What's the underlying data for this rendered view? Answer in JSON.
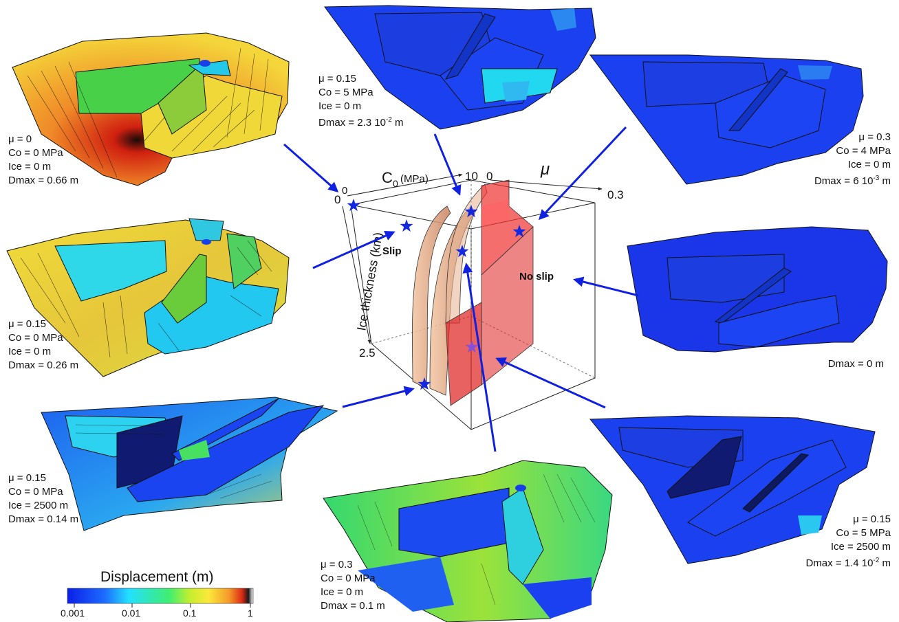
{
  "colorbar": {
    "title": "Displacement (m)",
    "ticks": [
      "0.001",
      "0.01",
      "0.1",
      "1"
    ],
    "colors": [
      "#0a1fe8",
      "#1e6bff",
      "#22e0ff",
      "#40ee70",
      "#c6ee2e",
      "#fbe83a",
      "#f59a2a",
      "#dd2a14",
      "#1a1a1a",
      "#ffffff"
    ]
  },
  "cube": {
    "c0_label": "C",
    "c0_sub": "0",
    "c0_unit": "(MPa)",
    "c0_min": "0",
    "c0_max": "10",
    "mu_label": "μ",
    "mu_min": "0",
    "mu_max": "0.3",
    "ice_label": "Ice thickness (km)",
    "ice_min": "0",
    "ice_max": "2.5",
    "slip_label": "Slip",
    "noslip_label": "No slip"
  },
  "panels": {
    "p1": {
      "mu": "μ = 0",
      "co": "Co = 0 MPa",
      "ice": "Ice = 0 m",
      "dmax": "Dmax = 0.66 m",
      "dominant_color": "#e8a020"
    },
    "p2": {
      "mu": "μ = 0.15",
      "co": "Co = 5 MPa",
      "ice": "Ice = 0 m",
      "dmax_base": "Dmax = 2.3 10",
      "dmax_exp": "-2",
      "dmax_unit": " m",
      "dominant_color": "#1a40f0"
    },
    "p3": {
      "mu": "μ = 0.3",
      "co": "Co = 4 MPa",
      "ice": "Ice = 0 m",
      "dmax_base": "Dmax = 6 10",
      "dmax_exp": "-3",
      "dmax_unit": " m",
      "dominant_color": "#1a40f0"
    },
    "p4": {
      "mu": "μ = 0.15",
      "co": "Co = 0 MPa",
      "ice": "Ice = 0 m",
      "dmax": "Dmax = 0.26 m",
      "dominant_color": "#e6d430"
    },
    "p5": {
      "dmax": "Dmax = 0 m",
      "dominant_color": "#1a36e8"
    },
    "p6": {
      "mu": "μ = 0.15",
      "co": "Co = 0 MPa",
      "ice": "Ice = 2500 m",
      "dmax": "Dmax = 0.14 m",
      "dominant_color": "#2250f0"
    },
    "p7": {
      "mu": "μ = 0.3",
      "co": "Co = 0 MPa",
      "ice": "Ice = 0 m",
      "dmax": "Dmax = 0.1 m",
      "dominant_color": "#38d860"
    },
    "p8": {
      "mu": "μ = 0.15",
      "co": "Co = 5 MPa",
      "ice": "Ice = 2500 m",
      "dmax_base": "Dmax = 1.4 10",
      "dmax_exp": "-2",
      "dmax_unit": " m",
      "dominant_color": "#1a40f0"
    }
  },
  "colors": {
    "arrow": "#1020e0",
    "star": "#1428e0",
    "red_surface": "#e02020",
    "tan_surface": "#d89870"
  }
}
